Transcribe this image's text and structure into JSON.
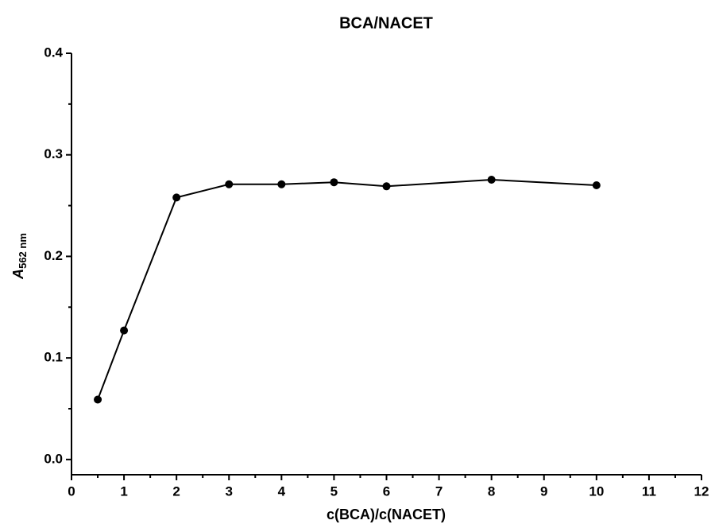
{
  "chart_data": {
    "type": "line",
    "title": "BCA/NACET",
    "xlabel": "c(BCA)/c(NACET)",
    "ylabel": {
      "symbol": "A",
      "subscript": "562 nm"
    },
    "x": [
      0.5,
      1,
      2,
      3,
      4,
      5,
      6,
      8,
      10
    ],
    "series": [
      {
        "name": "BCA/NACET",
        "color": "#000000",
        "values": [
          0.059,
          0.127,
          0.258,
          0.271,
          0.271,
          0.273,
          0.269,
          0.2755,
          0.27
        ]
      }
    ],
    "xlim": [
      0,
      12
    ],
    "xticks": [
      0,
      1,
      2,
      3,
      4,
      5,
      6,
      7,
      8,
      9,
      10,
      11,
      12
    ],
    "ylim": [
      -0.015,
      0.4
    ],
    "yticks": [
      {
        "value": 0,
        "label": "0.0"
      },
      0.1,
      0.2,
      0.3,
      0.4
    ],
    "grid": false
  }
}
